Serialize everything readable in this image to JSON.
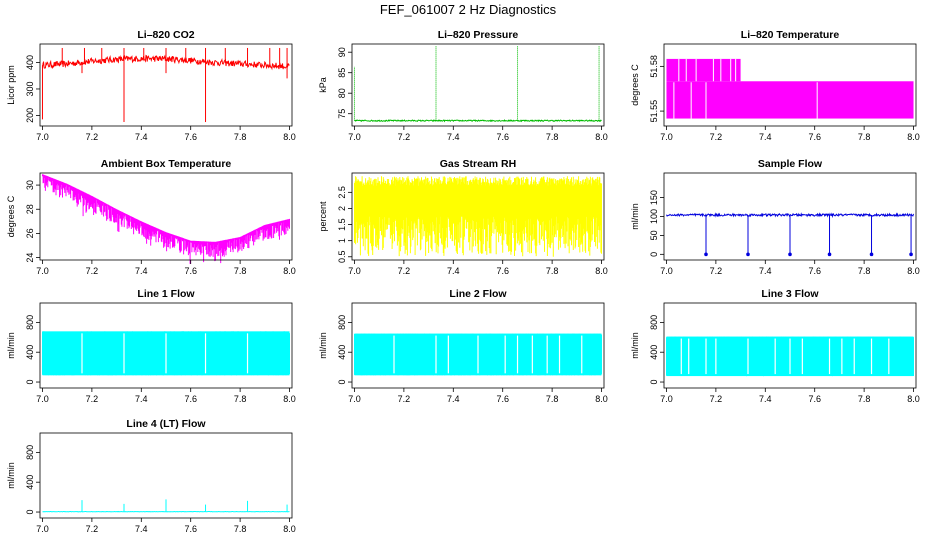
{
  "title": "FEF_061007  2 Hz Diagnostics",
  "chart_data": [
    {
      "type": "line",
      "title": "Li–820 CO2",
      "ylabel": "Licor ppm",
      "color": "#ff0000",
      "xlim": [
        6.99,
        8.01
      ],
      "ylim": [
        160,
        470
      ],
      "xticks": [
        "7.0",
        "7.2",
        "7.4",
        "7.6",
        "7.8",
        "8.0"
      ],
      "yticks": [
        200,
        300,
        400
      ],
      "baseline": [
        [
          7.0,
          390
        ],
        [
          7.1,
          395
        ],
        [
          7.2,
          405
        ],
        [
          7.3,
          412
        ],
        [
          7.4,
          415
        ],
        [
          7.5,
          414
        ],
        [
          7.6,
          408
        ],
        [
          7.7,
          400
        ],
        [
          7.8,
          395
        ],
        [
          7.9,
          390
        ],
        [
          8.0,
          385
        ]
      ],
      "noise": 12,
      "spikes_up": [
        7.08,
        7.17,
        7.24,
        7.33,
        7.41,
        7.5,
        7.58,
        7.66,
        7.74,
        7.83,
        7.92,
        7.96,
        7.99
      ],
      "spike_up_value": 455,
      "spikes_down": [
        [
          7.0,
          185
        ],
        [
          7.33,
          175
        ],
        [
          7.66,
          175
        ],
        [
          7.99,
          340
        ],
        [
          7.16,
          360
        ],
        [
          7.5,
          360
        ]
      ]
    },
    {
      "type": "line",
      "title": "Li–820 Pressure",
      "ylabel": "kPa",
      "color": "#00bb00",
      "xlim": [
        6.99,
        8.01
      ],
      "ylim": [
        72,
        92
      ],
      "xticks": [
        "7.0",
        "7.2",
        "7.4",
        "7.6",
        "7.8",
        "8.0"
      ],
      "yticks": [
        75,
        80,
        85,
        90
      ],
      "baseline": [
        [
          7.0,
          73.3
        ],
        [
          8.0,
          73.3
        ]
      ],
      "noise": 0.15,
      "spikes_up": [],
      "spike_up_value": 91.5,
      "spikes_tall": [
        [
          7.0,
          86.5
        ],
        [
          7.33,
          91.5
        ],
        [
          7.66,
          91.5
        ],
        [
          7.99,
          91.5
        ]
      ],
      "spikes_down": []
    },
    {
      "type": "line",
      "title": "Li–820 Temperature",
      "ylabel": "degrees C",
      "color": "#ff00ff",
      "xlim": [
        6.99,
        8.01
      ],
      "ylim": [
        51.54,
        51.595
      ],
      "xticks": [
        "7.0",
        "7.2",
        "7.4",
        "7.6",
        "7.8",
        "8.0"
      ],
      "yticks": [
        51.55,
        51.58
      ],
      "levels": [
        51.545,
        51.57,
        51.585
      ],
      "upper_until": 7.3
    },
    {
      "type": "line",
      "title": "Ambient Box Temperature",
      "ylabel": "degrees C",
      "color": "#ff00ff",
      "xlim": [
        6.99,
        8.01
      ],
      "ylim": [
        23.8,
        31
      ],
      "xticks": [
        "7.0",
        "7.2",
        "7.4",
        "7.6",
        "7.8",
        "8.0"
      ],
      "yticks": [
        24,
        26,
        28,
        30
      ],
      "baseline": [
        [
          7.0,
          30.8
        ],
        [
          7.1,
          30.0
        ],
        [
          7.2,
          29.0
        ],
        [
          7.3,
          27.9
        ],
        [
          7.4,
          26.9
        ],
        [
          7.5,
          26.0
        ],
        [
          7.6,
          25.3
        ],
        [
          7.7,
          25.2
        ],
        [
          7.8,
          25.6
        ],
        [
          7.9,
          26.6
        ],
        [
          8.0,
          27.1
        ]
      ],
      "band_down": 1.2
    },
    {
      "type": "line",
      "title": "Gas Stream RH",
      "ylabel": "percent",
      "color": "#ffff00",
      "xlim": [
        6.99,
        8.01
      ],
      "ylim": [
        0.4,
        3.1
      ],
      "xticks": [
        "7.0",
        "7.2",
        "7.4",
        "7.6",
        "7.8",
        "8.0"
      ],
      "yticks": [
        0.5,
        1.0,
        1.5,
        2.0,
        2.5
      ],
      "band": [
        0.5,
        3.0
      ]
    },
    {
      "type": "line",
      "title": "Sample Flow",
      "ylabel": "ml/min",
      "color": "#0000dd",
      "xlim": [
        6.99,
        8.01
      ],
      "ylim": [
        -15,
        215
      ],
      "xticks": [
        "7.0",
        "7.2",
        "7.4",
        "7.6",
        "7.8",
        "8.0"
      ],
      "yticks": [
        0,
        50,
        100,
        150
      ],
      "baseline": [
        [
          7.0,
          104
        ],
        [
          8.0,
          104
        ]
      ],
      "noise": 3,
      "drops": [
        7.16,
        7.33,
        7.5,
        7.66,
        7.83,
        7.99
      ],
      "drop_value": 0
    },
    {
      "type": "line",
      "title": "Line 1 Flow",
      "ylabel": "ml/min",
      "color": "#00ffff",
      "xlim": [
        6.99,
        8.01
      ],
      "ylim": [
        -80,
        1060
      ],
      "xticks": [
        "7.0",
        "7.2",
        "7.4",
        "7.6",
        "7.8",
        "8.0"
      ],
      "yticks": [
        0,
        400,
        800
      ],
      "band": [
        90,
        680
      ],
      "gaps": [
        7.16,
        7.33,
        7.5,
        7.66,
        7.83
      ]
    },
    {
      "type": "line",
      "title": "Line 2 Flow",
      "ylabel": "ml/min",
      "color": "#00ffff",
      "xlim": [
        6.99,
        8.01
      ],
      "ylim": [
        -80,
        1060
      ],
      "xticks": [
        "7.0",
        "7.2",
        "7.4",
        "7.6",
        "7.8",
        "8.0"
      ],
      "yticks": [
        0,
        400,
        800
      ],
      "band": [
        90,
        650
      ],
      "gaps": [
        7.16,
        7.33,
        7.38,
        7.5,
        7.61,
        7.66,
        7.72,
        7.78,
        7.83,
        7.92
      ]
    },
    {
      "type": "line",
      "title": "Line 3 Flow",
      "ylabel": "ml/min",
      "color": "#00ffff",
      "xlim": [
        6.99,
        8.01
      ],
      "ylim": [
        -80,
        1060
      ],
      "xticks": [
        "7.0",
        "7.2",
        "7.4",
        "7.6",
        "7.8",
        "8.0"
      ],
      "yticks": [
        0,
        400,
        800
      ],
      "band": [
        80,
        610
      ],
      "gaps": [
        7.06,
        7.09,
        7.16,
        7.2,
        7.33,
        7.44,
        7.5,
        7.55,
        7.66,
        7.71,
        7.76,
        7.83,
        7.9
      ]
    },
    {
      "type": "line",
      "title": "Line 4 (LT) Flow",
      "ylabel": "ml/min",
      "color": "#00ffff",
      "xlim": [
        6.99,
        8.01
      ],
      "ylim": [
        -80,
        1060
      ],
      "xticks": [
        "7.0",
        "7.2",
        "7.4",
        "7.6",
        "7.8",
        "8.0"
      ],
      "yticks": [
        0,
        400,
        800
      ],
      "baseline": [
        [
          7.0,
          5
        ],
        [
          8.0,
          5
        ]
      ],
      "noise": 2,
      "spikes_tall": [
        [
          7.16,
          160
        ],
        [
          7.33,
          110
        ],
        [
          7.5,
          170
        ],
        [
          7.66,
          100
        ],
        [
          7.83,
          150
        ],
        [
          7.99,
          100
        ]
      ]
    }
  ]
}
